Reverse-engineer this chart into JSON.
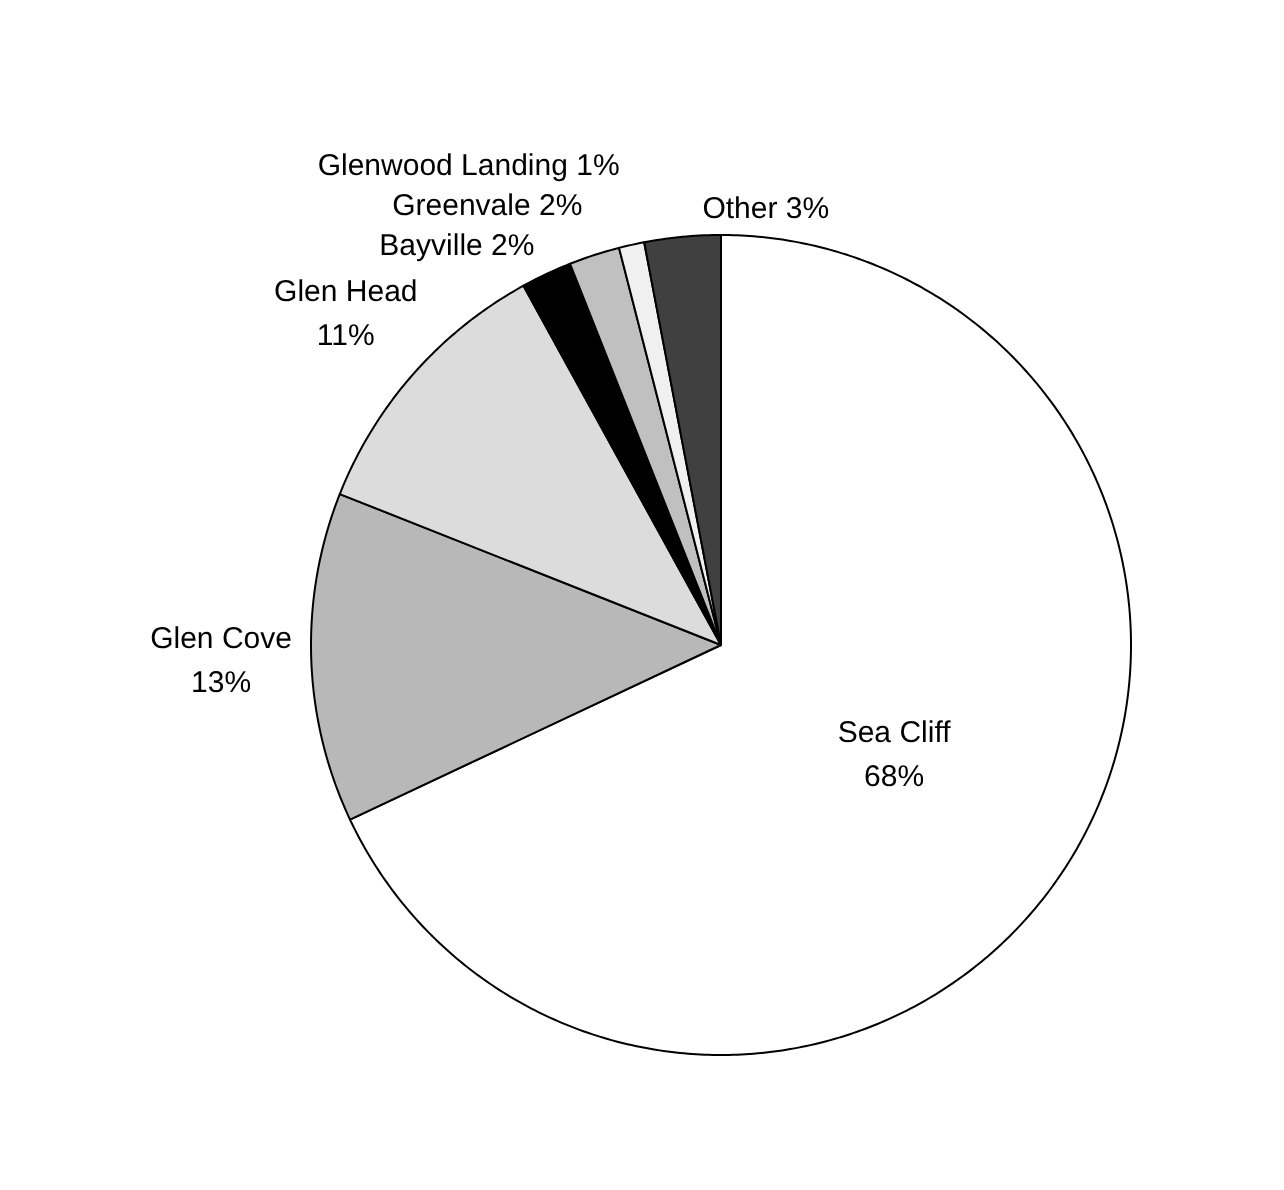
{
  "chart_data": {
    "type": "pie",
    "categories": [
      "Sea Cliff",
      "Glen Cove",
      "Glen Head",
      "Bayville",
      "Greenvale",
      "Glenwood Landing",
      "Other"
    ],
    "values": [
      68,
      13,
      11,
      2,
      2,
      1,
      3
    ],
    "value_labels": [
      "68%",
      "13%",
      "11%",
      "2%",
      "2%",
      "1%",
      "3%"
    ],
    "colors": [
      "#ffffff",
      "#b8b8b8",
      "#dcdcdc",
      "#000000",
      "#c0c0c0",
      "#f0f0f0",
      "#404040"
    ]
  }
}
